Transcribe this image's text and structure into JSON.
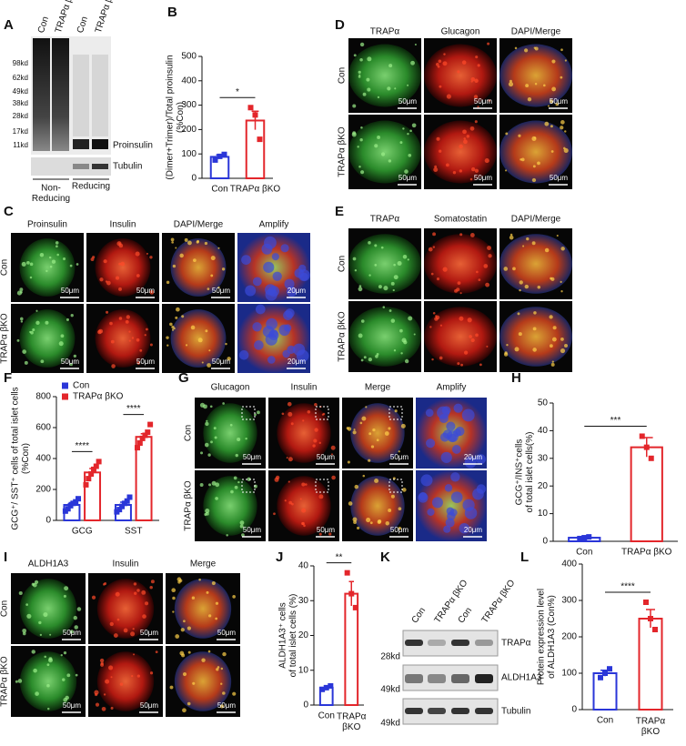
{
  "panel_labels": [
    "A",
    "B",
    "C",
    "D",
    "E",
    "F",
    "G",
    "H",
    "I",
    "J",
    "K",
    "L"
  ],
  "blot_a": {
    "lanes": [
      "Con",
      "TRAPα βKO",
      "Con",
      "TRAPα βKO"
    ],
    "markers": [
      "98kd",
      "62kd",
      "49kd",
      "38kd",
      "28kd",
      "17kd",
      "11kd"
    ],
    "bands": [
      "Proinsulin",
      "Tubulin"
    ],
    "conditions": [
      "Non-\nReducing",
      "Reducing"
    ]
  },
  "blot_k": {
    "lanes": [
      "Con",
      "TRAPα βKO",
      "Con",
      "TRAPα βKO"
    ],
    "markers": [
      "28kd",
      "49kd",
      "49kd"
    ],
    "bands": [
      "TRAPα",
      "ALDH1A3",
      "Tubulin"
    ]
  },
  "micrographs": {
    "C": {
      "columns": [
        "Proinsulin",
        "Insulin",
        "DAPI/Merge",
        "Amplify"
      ],
      "rows": [
        "Con",
        "TRAPα βKO"
      ],
      "scale_bars": [
        [
          "50μm",
          "50μm",
          "50μm",
          "20μm"
        ],
        [
          "50μm",
          "50μm",
          "50μm",
          "20μm"
        ]
      ]
    },
    "D": {
      "columns": [
        "TRAPα",
        "Glucagon",
        "DAPI/Merge"
      ],
      "rows": [
        "Con",
        "TRAPα βKO"
      ],
      "scale_bars": [
        [
          "50μm",
          "50μm",
          "50μm"
        ],
        [
          "50μm",
          "50μm",
          "50μm"
        ]
      ]
    },
    "E": {
      "columns": [
        "TRAPα",
        "Somatostatin",
        "DAPI/Merge"
      ],
      "rows": [
        "Con",
        "TRAPα βKO"
      ]
    },
    "G": {
      "columns": [
        "Glucagon",
        "Insulin",
        "Merge",
        "Amplify"
      ],
      "rows": [
        "Con",
        "TRAPα βKO"
      ],
      "scale_bars": [
        [
          "50μm",
          "50μm",
          "50μm",
          "20μm"
        ],
        [
          "50μm",
          "50μm",
          "50μm",
          "20μm"
        ]
      ]
    },
    "I": {
      "columns": [
        "ALDH1A3",
        "Insulin",
        "Merge"
      ],
      "rows": [
        "Con",
        "TRAPα βKO"
      ],
      "scale_bars": [
        [
          "50μm",
          "50μm",
          "50μm"
        ],
        [
          "50μm",
          "50μm",
          "50μm"
        ]
      ]
    }
  },
  "chart_data": [
    {
      "type": "bar",
      "y_label": "(Dimer+Trimer)/Total proinsulin\n(%Con)",
      "categories": [
        "Con",
        "TRAPα βKO"
      ],
      "colors": [
        "#2a36d8",
        "#e3262b"
      ],
      "values": [
        88,
        237
      ],
      "errors": [
        8,
        38
      ],
      "points": [
        [
          75,
          90,
          98
        ],
        [
          290,
          260,
          160
        ]
      ],
      "ylim": [
        0,
        500
      ],
      "yticks": [
        0,
        100,
        200,
        300,
        400,
        500
      ],
      "significance": [
        "*"
      ]
    },
    {
      "type": "bar",
      "y_label": "GCG⁺/ SST⁺ cells of total islet cells\n(%Con)",
      "categories": [
        "GCG",
        "SST"
      ],
      "series": [
        {
          "name": "Con",
          "color": "#2a36d8",
          "values": [
            100,
            100
          ],
          "errors": [
            15,
            18
          ],
          "points": [
            [
              60,
              75,
              95,
              110,
              120,
              140
            ],
            [
              55,
              70,
              90,
              110,
              125,
              150
            ]
          ]
        },
        {
          "name": "TRAPα βKO",
          "color": "#e3262b",
          "values": [
            310,
            540
          ],
          "errors": [
            25,
            20
          ],
          "points": [
            [
              230,
              270,
              300,
              330,
              350,
              380
            ],
            [
              470,
              500,
              530,
              550,
              570,
              620
            ]
          ]
        }
      ],
      "ylim": [
        0,
        800
      ],
      "yticks": [
        0,
        200,
        400,
        600,
        800
      ],
      "significance": [
        "****",
        "****"
      ],
      "legend": "top-left"
    },
    {
      "type": "bar",
      "y_label": "GCG⁺/INS⁺cells\nof total islet cells(%)",
      "categories": [
        "Con",
        "TRAPα βKO"
      ],
      "colors": [
        "#2a36d8",
        "#e3262b"
      ],
      "values": [
        1.3,
        34
      ],
      "errors": [
        0.3,
        3.5
      ],
      "points": [
        [
          1,
          1.3,
          1.6
        ],
        [
          38,
          34,
          30
        ]
      ],
      "ylim": [
        0,
        50
      ],
      "yticks": [
        0,
        10,
        20,
        30,
        40,
        50
      ],
      "significance": [
        "***"
      ]
    },
    {
      "type": "bar",
      "y_label": "ALDH1A3⁺ cells\nof total islet cells (%)",
      "categories": [
        "Con",
        "TRAPα\nβKO"
      ],
      "colors": [
        "#2a36d8",
        "#e3262b"
      ],
      "values": [
        5,
        32
      ],
      "errors": [
        0.5,
        3.5
      ],
      "points": [
        [
          4.5,
          5,
          5.5
        ],
        [
          38,
          32,
          28
        ]
      ],
      "ylim": [
        0,
        40
      ],
      "yticks": [
        0,
        10,
        20,
        30,
        40
      ],
      "significance": [
        "**"
      ]
    },
    {
      "type": "bar",
      "y_label": "Protein expression level\nof ALDH1A3 (Con%)",
      "categories": [
        "Con",
        "TRAPα\nβKO"
      ],
      "colors": [
        "#2a36d8",
        "#e3262b"
      ],
      "values": [
        100,
        250
      ],
      "errors": [
        8,
        25
      ],
      "points": [
        [
          88,
          100,
          112
        ],
        [
          295,
          250,
          220
        ]
      ],
      "ylim": [
        0,
        400
      ],
      "yticks": [
        0,
        100,
        200,
        300,
        400
      ],
      "significance": [
        "****"
      ]
    }
  ]
}
